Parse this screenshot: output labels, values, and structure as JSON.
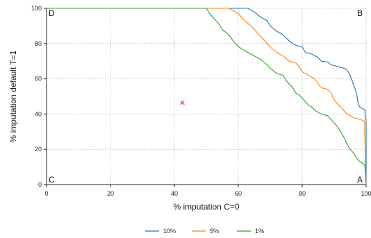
{
  "chart_data": {
    "type": "line",
    "title": "",
    "xlabel": "% imputation C=0",
    "ylabel": "% imputation default T=1",
    "xlim": [
      0,
      100
    ],
    "ylim": [
      0,
      100
    ],
    "xticks": [
      0,
      20,
      40,
      60,
      80,
      100
    ],
    "yticks": [
      0,
      20,
      40,
      60,
      80,
      100
    ],
    "grid": true,
    "legend_position": "bottom",
    "corner_labels": [
      {
        "text": "A",
        "x": 100,
        "y": 0
      },
      {
        "text": "B",
        "x": 100,
        "y": 100
      },
      {
        "text": "C",
        "x": 0,
        "y": 0
      },
      {
        "text": "D",
        "x": 0,
        "y": 100
      }
    ],
    "marker_point": {
      "x": 42.5,
      "y": 46.5,
      "symbol": "×",
      "color": "#d62728"
    },
    "series": [
      {
        "name": "10%",
        "color": "#1f77b4",
        "points": [
          [
            0,
            100
          ],
          [
            63,
            100
          ],
          [
            65,
            98
          ],
          [
            67,
            95
          ],
          [
            69,
            93
          ],
          [
            70,
            90
          ],
          [
            72,
            87
          ],
          [
            74,
            85
          ],
          [
            75,
            83
          ],
          [
            77,
            80
          ],
          [
            78,
            79
          ],
          [
            80,
            78
          ],
          [
            81,
            75
          ],
          [
            83,
            74
          ],
          [
            85,
            72
          ],
          [
            86,
            70
          ],
          [
            88,
            69.5
          ],
          [
            89,
            68
          ],
          [
            91,
            67
          ],
          [
            93,
            66
          ],
          [
            94,
            65
          ],
          [
            95,
            62
          ],
          [
            96,
            57
          ],
          [
            97,
            52
          ],
          [
            97.5,
            46
          ],
          [
            98,
            44
          ],
          [
            99,
            43
          ],
          [
            99.6,
            42.5
          ],
          [
            99.8,
            37
          ],
          [
            100,
            37
          ],
          [
            100,
            0
          ]
        ]
      },
      {
        "name": "5%",
        "color": "#ff7f0e",
        "points": [
          [
            0,
            100
          ],
          [
            57,
            100
          ],
          [
            58,
            99
          ],
          [
            60,
            97
          ],
          [
            62,
            93
          ],
          [
            64,
            90
          ],
          [
            65,
            88
          ],
          [
            67,
            84
          ],
          [
            69,
            80
          ],
          [
            70,
            78
          ],
          [
            72,
            75
          ],
          [
            74,
            73
          ],
          [
            76,
            70
          ],
          [
            78,
            69
          ],
          [
            79,
            67
          ],
          [
            80,
            64
          ],
          [
            82,
            62
          ],
          [
            84,
            60
          ],
          [
            85,
            57
          ],
          [
            86,
            55
          ],
          [
            88,
            54
          ],
          [
            89,
            52
          ],
          [
            90,
            48
          ],
          [
            91,
            46
          ],
          [
            92,
            44
          ],
          [
            93,
            42
          ],
          [
            94,
            40
          ],
          [
            95,
            39
          ],
          [
            96,
            38
          ],
          [
            97,
            37.5
          ],
          [
            98,
            37
          ],
          [
            99.5,
            36
          ],
          [
            99.8,
            10
          ],
          [
            100,
            0
          ]
        ]
      },
      {
        "name": "1%",
        "color": "#2ca02c",
        "points": [
          [
            0,
            100
          ],
          [
            50,
            100
          ],
          [
            51,
            97
          ],
          [
            52,
            95
          ],
          [
            53,
            93
          ],
          [
            54,
            91
          ],
          [
            55,
            88
          ],
          [
            57,
            85
          ],
          [
            59,
            80
          ],
          [
            61,
            77
          ],
          [
            63,
            75
          ],
          [
            65,
            73
          ],
          [
            67,
            71
          ],
          [
            69,
            68
          ],
          [
            70,
            66
          ],
          [
            72,
            63
          ],
          [
            74,
            62
          ],
          [
            75,
            59
          ],
          [
            76,
            57
          ],
          [
            77,
            55
          ],
          [
            78,
            52
          ],
          [
            79,
            51
          ],
          [
            80,
            49
          ],
          [
            81,
            47
          ],
          [
            82,
            45
          ],
          [
            83,
            44
          ],
          [
            84,
            42
          ],
          [
            85,
            41
          ],
          [
            86,
            40
          ],
          [
            88,
            39
          ],
          [
            89,
            37
          ],
          [
            90,
            35
          ],
          [
            91,
            33
          ],
          [
            92,
            30
          ],
          [
            93,
            27
          ],
          [
            94,
            23
          ],
          [
            95,
            20
          ],
          [
            96,
            18
          ],
          [
            97,
            15
          ],
          [
            98,
            13
          ],
          [
            99,
            12
          ],
          [
            99.6,
            11
          ],
          [
            99.9,
            2
          ],
          [
            100,
            0
          ]
        ]
      }
    ]
  }
}
